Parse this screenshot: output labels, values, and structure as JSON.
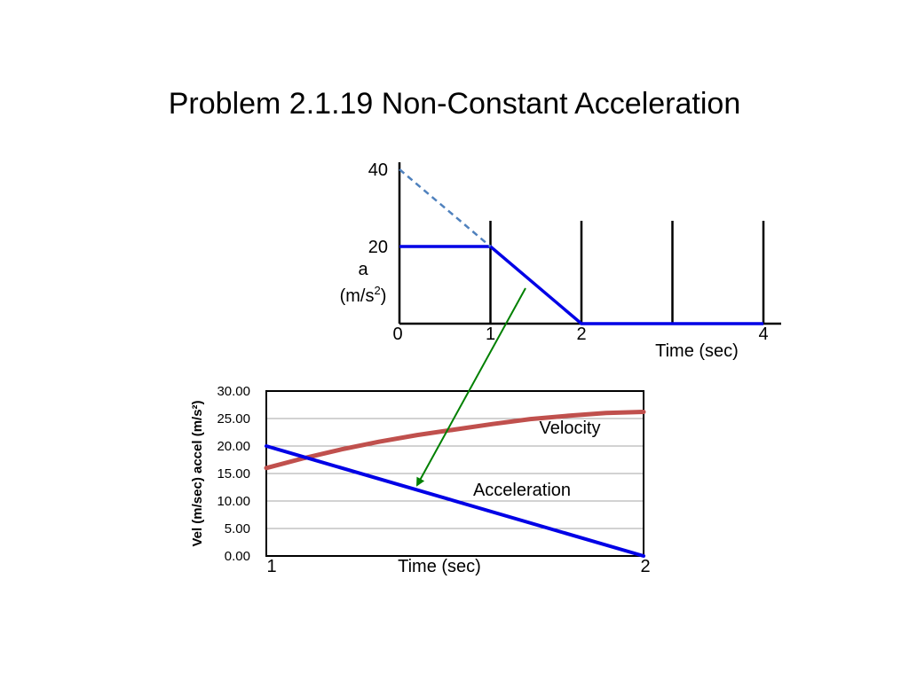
{
  "title": "Problem 2.1.19 Non-Constant Acceleration",
  "colors": {
    "acceleration": "#0000e6",
    "velocity": "#c0504d",
    "extrapolation": "#4f81bd",
    "arrow": "#008000",
    "grid": "#a6a6a6",
    "axes": "#000000"
  },
  "chart_data": [
    {
      "type": "line",
      "title": "",
      "ylabel": "a",
      "ylabel_unit_base": "(m/s",
      "ylabel_unit_exp": "2",
      "ylabel_unit_close": ")",
      "xlabel": "Time (sec)",
      "xlim": [
        0,
        4.2
      ],
      "ylim": [
        0,
        44
      ],
      "x_ticks": [
        "0",
        "1",
        "2",
        "4"
      ],
      "y_ticks": [
        "20",
        "40"
      ],
      "vertical_lines_at": [
        1,
        2,
        3,
        4
      ],
      "grid": false,
      "series": [
        {
          "style": "solid",
          "x": [
            0,
            1,
            2,
            4
          ],
          "y": [
            20,
            20,
            0,
            0
          ]
        },
        {
          "style": "dashed",
          "x": [
            0,
            1
          ],
          "y": [
            40,
            20
          ]
        }
      ]
    },
    {
      "type": "line",
      "title": "",
      "ylabel": "Vel (m/sec)  accel (m/s²)",
      "xlabel": "Time (sec)",
      "xlim": [
        1,
        2
      ],
      "ylim": [
        0,
        30
      ],
      "x_ticks": [
        "1",
        "2"
      ],
      "y_ticks": [
        "0.00",
        "5.00",
        "10.00",
        "15.00",
        "20.00",
        "25.00",
        "30.00"
      ],
      "grid": true,
      "series": [
        {
          "name": "Velocity",
          "x": [
            1,
            1.1,
            1.2,
            1.3,
            1.4,
            1.5,
            1.6,
            1.7,
            1.8,
            1.9,
            2
          ],
          "y": [
            16.0,
            17.8,
            19.4,
            20.8,
            22.0,
            23.0,
            24.0,
            24.9,
            25.5,
            26.0,
            26.2
          ]
        },
        {
          "name": "Acceleration",
          "x": [
            1,
            2
          ],
          "y": [
            20,
            0
          ]
        }
      ]
    }
  ]
}
